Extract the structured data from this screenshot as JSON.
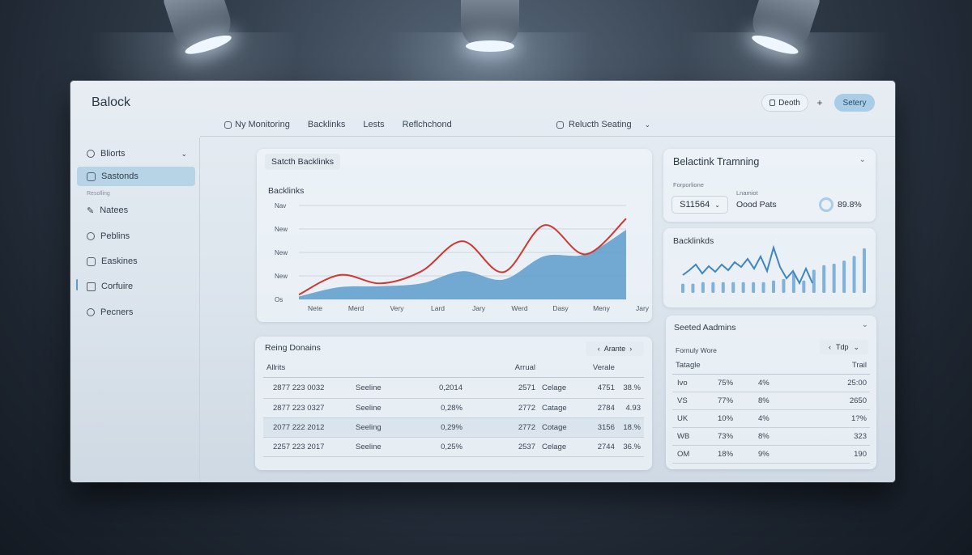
{
  "app": {
    "title": "Balock"
  },
  "header": {
    "nav": [
      "Ny Monitoring",
      "Backlinks",
      "Lests",
      "Reflchchond"
    ],
    "relset_label": "Relucth Seating",
    "btn_deoth": "Deoth",
    "btn_plus": "+",
    "btn_setery": "Setery"
  },
  "sidebar": {
    "items": [
      {
        "label": "Bliorts",
        "icon": "search-icon"
      },
      {
        "label": "Sastonds",
        "icon": "grid-icon"
      },
      {
        "label": "Natees",
        "icon": "pencil-icon"
      },
      {
        "label": "Peblins",
        "icon": "target-icon"
      },
      {
        "label": "Easkines",
        "icon": "image-icon"
      },
      {
        "label": "Corfuire",
        "icon": "bookmark-icon"
      },
      {
        "label": "Pecners",
        "icon": "user-icon"
      }
    ],
    "section_label": "Resolling"
  },
  "main_chart": {
    "search_label": "Satcth Backlinks",
    "title": "Backlinks",
    "y_ticks": [
      "Nav",
      "New",
      "New",
      "New",
      "Os"
    ],
    "x_ticks": [
      "Nete",
      "Merd",
      "Very",
      "Lard",
      "Jary",
      "Werd",
      "Dasy",
      "Meny",
      "Jary"
    ]
  },
  "chart_data": {
    "type": "area",
    "title": "Backlinks",
    "categories": [
      "Nete",
      "Merd",
      "Very",
      "Lard",
      "Jary",
      "Werd",
      "Dasy",
      "Meny",
      "Jary"
    ],
    "series": [
      {
        "values": [
          3,
          13,
          14,
          17,
          30,
          21,
          46,
          48,
          74
        ]
      },
      {
        "values": [
          5,
          26,
          17,
          30,
          62,
          29,
          79,
          48,
          86
        ]
      }
    ],
    "ylim": [
      0,
      100
    ],
    "grid": true,
    "colors": [
      "#5d9ccb",
      "#d1372e"
    ]
  },
  "domains": {
    "title": "Reing Donains",
    "filter_label": "Arante",
    "headers": [
      "Allrits",
      "",
      "",
      "Arrual",
      "",
      "Verale"
    ],
    "rows": [
      [
        "2877 223 0032",
        "Seeline",
        "0,2014",
        "2571",
        "Celage",
        "4751",
        "38.%"
      ],
      [
        "2877 223 0327",
        "Seeline",
        "0,28%",
        "2772",
        "Catage",
        "2784",
        "4.93"
      ],
      [
        "2077 222 2012",
        "Seeling",
        "0,29%",
        "2772",
        "Cotage",
        "3156",
        "18.%"
      ],
      [
        "2257 223 2017",
        "Seeline",
        "0,25%",
        "2537",
        "Celage",
        "2744",
        "36.%"
      ]
    ]
  },
  "training": {
    "title": "Belactink Tramning",
    "field1_label": "Forporlione",
    "field1_value": "S11564",
    "field2_label": "Lnamiot",
    "field2_value": "Oood Pats",
    "field3_value": "89.8%"
  },
  "mini_chart": {
    "title": "Backlinkds",
    "line_values": [
      22,
      28,
      35,
      24,
      33,
      26,
      35,
      28,
      38,
      32,
      42,
      30,
      45,
      27,
      56,
      32,
      18,
      27,
      12,
      30,
      12
    ],
    "bar_values": [
      12,
      12,
      14,
      14,
      14,
      14,
      14,
      14,
      14,
      16,
      18,
      26,
      16,
      30,
      36,
      38,
      42,
      48,
      58
    ]
  },
  "admins": {
    "title": "Seeted Aadmins",
    "filter_label": "Fornuly Wore",
    "dropdown_label": "Tdp",
    "headers": [
      "Tatagle",
      "",
      "",
      "Trail"
    ],
    "rows": [
      [
        "Ivo",
        "75%",
        "4%",
        "25:00"
      ],
      [
        "VS",
        "77%",
        "8%",
        "2650"
      ],
      [
        "UK",
        "10%",
        "4%",
        "1?%"
      ],
      [
        "WB",
        "73%",
        "8%",
        "323"
      ],
      [
        "OM",
        "18%",
        "9%",
        "190"
      ]
    ]
  }
}
